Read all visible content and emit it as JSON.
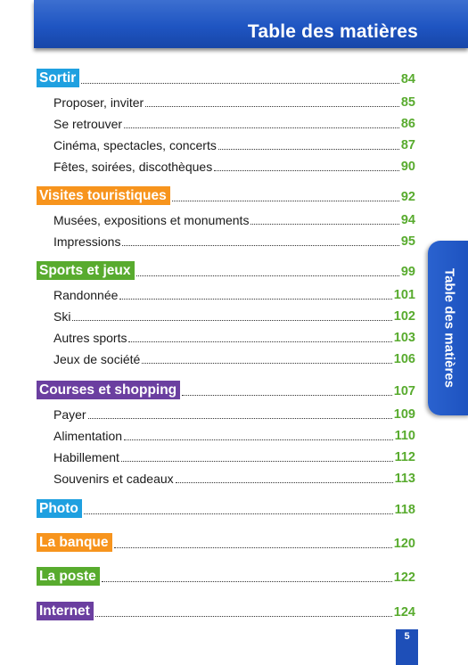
{
  "header": {
    "title": "Table des matières"
  },
  "side_tab": {
    "label": "Table des matières"
  },
  "colors": {
    "blue": "#1fa0e0",
    "orange": "#f7941d",
    "green": "#58ab2e",
    "purple": "#6b3fa0",
    "page_number": "#58ab2e",
    "header": "#1f55c2"
  },
  "sections": [
    {
      "title": "Sortir",
      "page": "84",
      "color": "blue",
      "items": [
        {
          "label": "Proposer, inviter",
          "page": "85"
        },
        {
          "label": "Se retrouver",
          "page": "86"
        },
        {
          "label": "Cinéma, spectacles, concerts",
          "page": "87"
        },
        {
          "label": "Fêtes, soirées, discothèques",
          "page": "90"
        }
      ]
    },
    {
      "title": "Visites touristiques",
      "page": "92",
      "color": "orange",
      "items": [
        {
          "label": "Musées, expositions et monuments",
          "page": "94"
        },
        {
          "label": "Impressions",
          "page": "95"
        }
      ]
    },
    {
      "title": "Sports et jeux",
      "page": "99",
      "color": "green",
      "items": [
        {
          "label": "Randonnée",
          "page": "101"
        },
        {
          "label": "Ski",
          "page": "102"
        },
        {
          "label": "Autres sports",
          "page": "103"
        },
        {
          "label": "Jeux de société",
          "page": "106"
        }
      ]
    },
    {
      "title": "Courses et shopping",
      "page": "107",
      "color": "purple",
      "items": [
        {
          "label": "Payer",
          "page": "109"
        },
        {
          "label": "Alimentation",
          "page": "110"
        },
        {
          "label": "Habillement",
          "page": "112"
        },
        {
          "label": "Souvenirs et cadeaux",
          "page": "113"
        }
      ]
    },
    {
      "title": "Photo",
      "page": "118",
      "color": "blue",
      "items": []
    },
    {
      "title": "La banque",
      "page": "120",
      "color": "orange",
      "items": []
    },
    {
      "title": "La poste",
      "page": "122",
      "color": "green",
      "items": []
    },
    {
      "title": "Internet",
      "page": "124",
      "color": "purple",
      "items": []
    }
  ],
  "footer": {
    "page_number": "5"
  }
}
